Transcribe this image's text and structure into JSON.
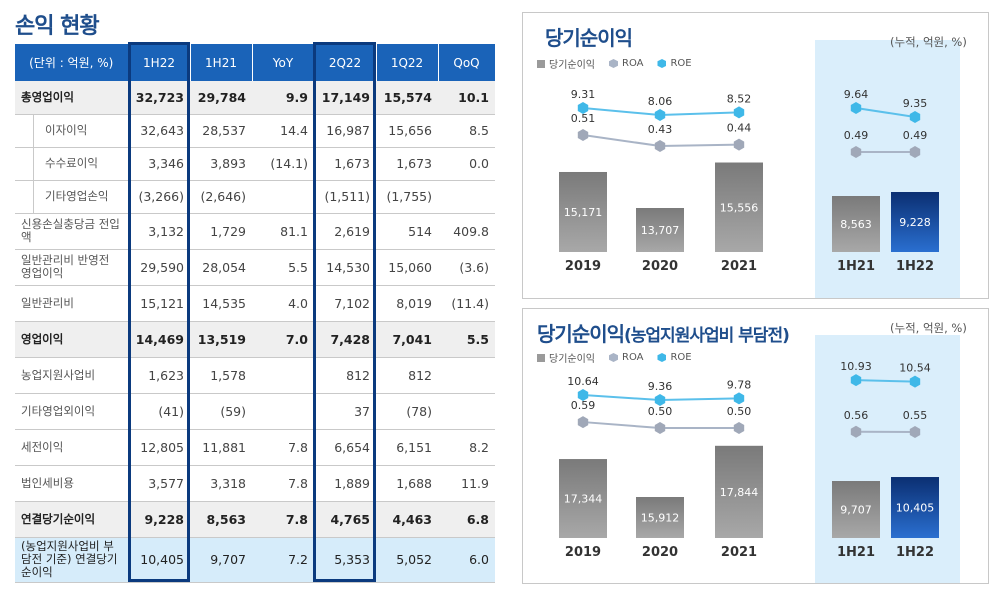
{
  "page_title": "손익 현황",
  "table": {
    "headers": [
      "(단위 : 억원, %)",
      "1H22",
      "1H21",
      "YoY",
      "2Q22",
      "1Q22",
      "QoQ"
    ],
    "rows": [
      {
        "label": "총영업이익",
        "values": [
          "32,723",
          "29,784",
          "9.9",
          "17,149",
          "15,574",
          "10.1"
        ]
      },
      {
        "label": "이자이익",
        "values": [
          "32,643",
          "28,537",
          "14.4",
          "16,987",
          "15,656",
          "8.5"
        ]
      },
      {
        "label": "수수료이익",
        "values": [
          "3,346",
          "3,893",
          "(14.1)",
          "1,673",
          "1,673",
          "0.0"
        ]
      },
      {
        "label": "기타영업손익",
        "values": [
          "(3,266)",
          "(2,646)",
          "",
          "(1,511)",
          "(1,755)",
          ""
        ]
      },
      {
        "label": "신용손실충당금 전입액",
        "values": [
          "3,132",
          "1,729",
          "81.1",
          "2,619",
          "514",
          "409.8"
        ]
      },
      {
        "label": "일반관리비 반영전 영업이익",
        "values": [
          "29,590",
          "28,054",
          "5.5",
          "14,530",
          "15,060",
          "(3.6)"
        ]
      },
      {
        "label": "일반관리비",
        "values": [
          "15,121",
          "14,535",
          "4.0",
          "7,102",
          "8,019",
          "(11.4)"
        ]
      },
      {
        "label": "영업이익",
        "values": [
          "14,469",
          "13,519",
          "7.0",
          "7,428",
          "7,041",
          "5.5"
        ]
      },
      {
        "label": "농업지원사업비",
        "values": [
          "1,623",
          "1,578",
          "",
          "812",
          "812",
          ""
        ]
      },
      {
        "label": "기타영업외이익",
        "values": [
          "(41)",
          "(59)",
          "",
          "37",
          "(78)",
          ""
        ]
      },
      {
        "label": "세전이익",
        "values": [
          "12,805",
          "11,881",
          "7.8",
          "6,654",
          "6,151",
          "8.2"
        ]
      },
      {
        "label": "법인세비용",
        "values": [
          "3,577",
          "3,318",
          "7.8",
          "1,889",
          "1,688",
          "11.9"
        ]
      },
      {
        "label": "연결당기순이익",
        "values": [
          "9,228",
          "8,563",
          "7.8",
          "4,765",
          "4,463",
          "6.8"
        ]
      },
      {
        "label": "(농업지원사업비 부담전 기준) 연결당기순이익",
        "values": [
          "10,405",
          "9,707",
          "7.2",
          "5,353",
          "5,052",
          "6.0"
        ]
      }
    ]
  },
  "chart_data": [
    {
      "type": "bar+line",
      "title": "당기순이익",
      "subtitle": "",
      "unit": "(누적, 억원, %)",
      "legend": [
        "당기순이익",
        "ROA",
        "ROE"
      ],
      "colors": {
        "bar": "#8c8c8c",
        "bar_highlight": "#0e3a8a",
        "roa": "#a9b4c6",
        "roe": "#3fb8e8",
        "shade": "#daeefb"
      },
      "groups": [
        {
          "categories": [
            "2019",
            "2020",
            "2021"
          ],
          "net_income": [
            15171,
            13707,
            15556
          ],
          "net_income_labels": [
            "15,171",
            "13,707",
            "15,556"
          ],
          "roa": [
            0.51,
            0.43,
            0.44
          ],
          "roa_labels": [
            "0.51",
            "0.43",
            "0.44"
          ],
          "roe": [
            9.31,
            8.06,
            8.52
          ],
          "roe_labels": [
            "9.31",
            "8.06",
            "8.52"
          ]
        },
        {
          "categories": [
            "1H21",
            "1H22"
          ],
          "net_income": [
            8563,
            9228
          ],
          "net_income_labels": [
            "8,563",
            "9,228"
          ],
          "roa": [
            0.49,
            0.49
          ],
          "roa_labels": [
            "0.49",
            "0.49"
          ],
          "roe": [
            9.64,
            9.35
          ],
          "roe_labels": [
            "9.64",
            "9.35"
          ]
        }
      ]
    },
    {
      "type": "bar+line",
      "title": "당기순이익",
      "subtitle": "(농업지원사업비 부담전)",
      "unit": "(누적, 억원, %)",
      "legend": [
        "당기순이익",
        "ROA",
        "ROE"
      ],
      "colors": {
        "bar": "#8c8c8c",
        "bar_highlight": "#0e3a8a",
        "roa": "#a9b4c6",
        "roe": "#3fb8e8",
        "shade": "#daeefb"
      },
      "groups": [
        {
          "categories": [
            "2019",
            "2020",
            "2021"
          ],
          "net_income": [
            17344,
            15912,
            17844
          ],
          "net_income_labels": [
            "17,344",
            "15,912",
            "17,844"
          ],
          "roa": [
            0.59,
            0.5,
            0.5
          ],
          "roa_labels": [
            "0.59",
            "0.50",
            "0.50"
          ],
          "roe": [
            10.64,
            9.36,
            9.78
          ],
          "roe_labels": [
            "10.64",
            "9.36",
            "9.78"
          ]
        },
        {
          "categories": [
            "1H21",
            "1H22"
          ],
          "net_income": [
            9707,
            10405
          ],
          "net_income_labels": [
            "9,707",
            "10,405"
          ],
          "roa": [
            0.56,
            0.55
          ],
          "roa_labels": [
            "0.56",
            "0.55"
          ],
          "roe": [
            10.93,
            10.54
          ],
          "roe_labels": [
            "10.93",
            "10.54"
          ]
        }
      ]
    }
  ]
}
